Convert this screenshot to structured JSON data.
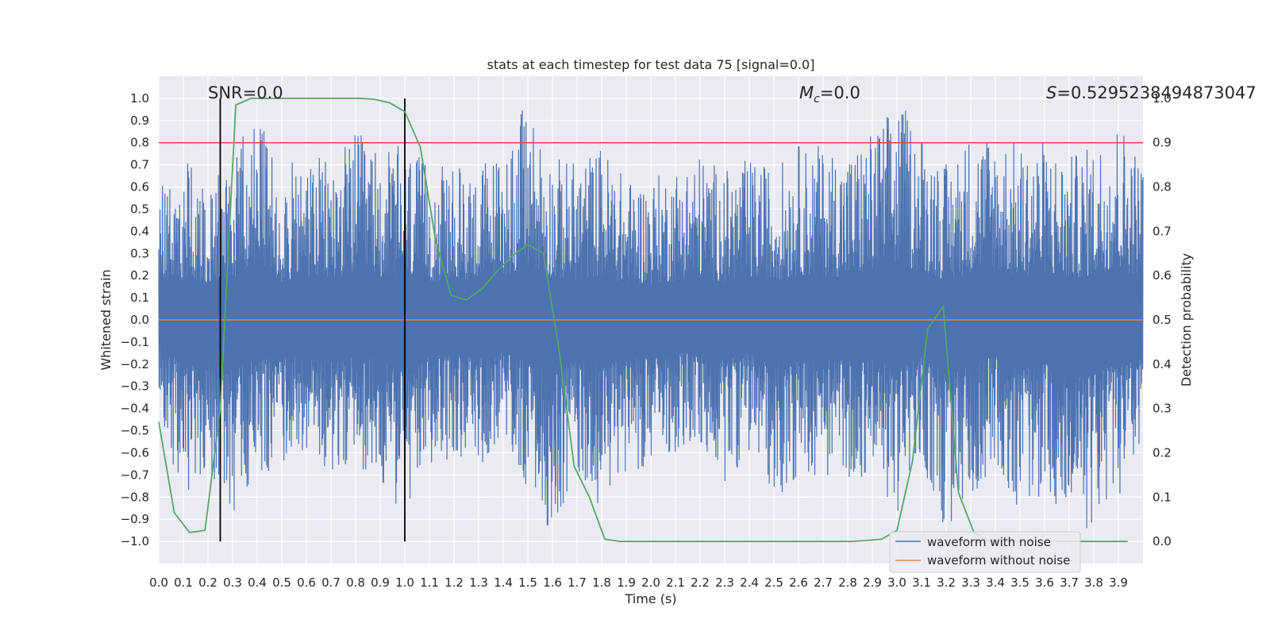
{
  "chart_data": {
    "type": "line",
    "title": "stats at each timestep for test data 75 [signal=0.0]",
    "xlabel": "Time (s)",
    "ylabel_left": "Whitened strain",
    "ylabel_right": "Detection probability",
    "xlim": [
      0.0,
      4.0
    ],
    "ylim_left": [
      -1.1,
      1.1
    ],
    "ylim_right": [
      -0.05,
      1.05
    ],
    "grid": true,
    "legend_placement": "lower-right",
    "x_ticks": [
      "0.0",
      "0.1",
      "0.2",
      "0.3",
      "0.4",
      "0.5",
      "0.6",
      "0.7",
      "0.8",
      "0.9",
      "1.0",
      "1.1",
      "1.2",
      "1.3",
      "1.4",
      "1.5",
      "1.6",
      "1.7",
      "1.8",
      "1.9",
      "2.0",
      "2.1",
      "2.2",
      "2.3",
      "2.4",
      "2.5",
      "2.6",
      "2.7",
      "2.8",
      "2.9",
      "3.0",
      "3.1",
      "3.2",
      "3.3",
      "3.4",
      "3.5",
      "3.6",
      "3.7",
      "3.8",
      "3.9"
    ],
    "y_ticks_left": [
      "-1.0",
      "-0.9",
      "-0.8",
      "-0.7",
      "-0.6",
      "-0.5",
      "-0.4",
      "-0.3",
      "-0.2",
      "-0.1",
      "0.0",
      "0.1",
      "0.2",
      "0.3",
      "0.4",
      "0.5",
      "0.6",
      "0.7",
      "0.8",
      "0.9",
      "1.0"
    ],
    "y_ticks_right": [
      "0.0",
      "0.1",
      "0.2",
      "0.3",
      "0.4",
      "0.5",
      "0.6",
      "0.7",
      "0.8",
      "0.9",
      "1.0"
    ],
    "annotations": {
      "snr": "SNR=0.0",
      "mc_symbol": "M",
      "mc_sub": "c",
      "mc_value": "=0.0",
      "s_symbol": "S",
      "s_value": "=0.5295238494873047"
    },
    "threshold_left": 0.8,
    "vlines_x": [
      0.25,
      1.0
    ],
    "vlines_ylim": [
      -1.0,
      1.0
    ],
    "series": [
      {
        "name": "waveform with noise",
        "axis": "left",
        "color": "#4c72b0",
        "envelope_x": [
          0.0,
          0.1,
          0.2,
          0.3,
          0.4,
          0.5,
          0.6,
          0.7,
          0.8,
          0.9,
          1.0,
          1.1,
          1.2,
          1.3,
          1.4,
          1.5,
          1.6,
          1.7,
          1.8,
          1.9,
          2.0,
          2.1,
          2.2,
          2.3,
          2.4,
          2.5,
          2.6,
          2.7,
          2.8,
          2.9,
          3.0,
          3.1,
          3.2,
          3.3,
          3.4,
          3.5,
          3.6,
          3.7,
          3.8,
          3.9,
          4.0
        ],
        "envelope_max": [
          0.6,
          0.73,
          0.65,
          0.75,
          0.95,
          0.69,
          0.74,
          0.73,
          0.86,
          0.76,
          0.8,
          0.7,
          0.69,
          0.72,
          0.77,
          1.0,
          0.74,
          0.72,
          0.8,
          0.64,
          0.64,
          0.7,
          0.76,
          0.68,
          0.73,
          0.69,
          0.8,
          0.79,
          0.77,
          0.86,
          1.0,
          0.87,
          0.71,
          0.86,
          0.87,
          0.79,
          0.82,
          0.74,
          0.8,
          0.93,
          0.73
        ],
        "envelope_min": [
          -0.45,
          -0.8,
          -0.69,
          -0.92,
          -0.7,
          -0.67,
          -0.63,
          -0.72,
          -0.66,
          -0.72,
          -0.94,
          -0.66,
          -0.62,
          -0.66,
          -0.58,
          -0.77,
          -0.97,
          -0.71,
          -0.85,
          -0.68,
          -0.67,
          -0.6,
          -0.6,
          -0.74,
          -0.6,
          -0.8,
          -0.74,
          -0.7,
          -0.73,
          -0.71,
          -0.88,
          -0.66,
          -0.99,
          -0.82,
          -0.64,
          -0.89,
          -0.78,
          -0.96,
          -0.95,
          -0.8,
          -0.7
        ]
      },
      {
        "name": "waveform without noise",
        "axis": "left",
        "color": "#dd8452",
        "x": [
          0.0,
          4.0
        ],
        "y": [
          0.0,
          0.0
        ]
      },
      {
        "name": "detection probability",
        "axis": "right",
        "color": "#55a868",
        "x": [
          0.0,
          0.063,
          0.125,
          0.188,
          0.25,
          0.313,
          0.375,
          0.438,
          0.5,
          0.563,
          0.625,
          0.688,
          0.75,
          0.813,
          0.875,
          0.938,
          1.0,
          1.063,
          1.125,
          1.188,
          1.25,
          1.313,
          1.375,
          1.438,
          1.5,
          1.563,
          1.625,
          1.688,
          1.75,
          1.813,
          1.875,
          1.938,
          2.0,
          2.063,
          2.125,
          2.188,
          2.25,
          2.313,
          2.375,
          2.438,
          2.5,
          2.563,
          2.625,
          2.688,
          2.75,
          2.813,
          2.875,
          2.938,
          3.0,
          3.063,
          3.125,
          3.188,
          3.25,
          3.313,
          3.375,
          3.438,
          3.5,
          3.563,
          3.625,
          3.688,
          3.75,
          3.813,
          3.875,
          3.938
        ],
        "y": [
          0.27,
          0.065,
          0.02,
          0.025,
          0.3,
          0.985,
          1.0,
          1.0,
          1.0,
          1.0,
          1.0,
          1.0,
          1.0,
          1.0,
          0.998,
          0.99,
          0.97,
          0.89,
          0.68,
          0.555,
          0.545,
          0.57,
          0.61,
          0.645,
          0.67,
          0.65,
          0.44,
          0.17,
          0.1,
          0.005,
          0.0,
          0.0,
          0.0,
          0.0,
          0.0,
          0.0,
          0.0,
          0.0,
          0.0,
          0.0,
          0.0,
          0.0,
          0.0,
          0.0,
          0.0,
          0.0,
          0.002,
          0.005,
          0.025,
          0.18,
          0.48,
          0.53,
          0.11,
          0.02,
          0.0,
          0.0,
          0.0,
          0.0,
          0.0,
          0.0,
          0.0,
          0.0,
          0.0,
          0.0
        ]
      }
    ]
  }
}
